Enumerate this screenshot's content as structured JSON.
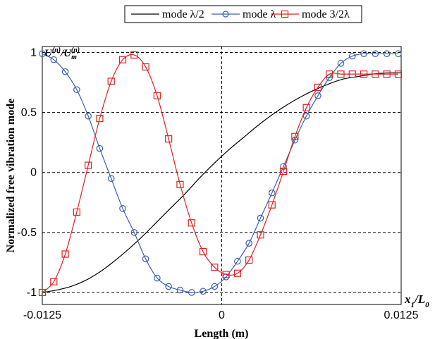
{
  "chart_data": {
    "type": "line",
    "xlabel": "Length (m)",
    "ylabel": "Normalized free vibration mode",
    "xlim": [
      -0.0125,
      0.0125
    ],
    "ylim": [
      -1.1,
      1.05
    ],
    "x_ticks": [
      -0.0125,
      0,
      0.0125
    ],
    "x_tick_labels": [
      "-0.0125",
      "0",
      "0.0125"
    ],
    "y_ticks": [
      1,
      0.5,
      0,
      -0.5,
      -1
    ],
    "y_tick_labels": [
      "1",
      "0.5",
      "0",
      "-0.5",
      "-1"
    ],
    "grid": "dashed",
    "legend_position": "top",
    "annotations": {
      "top_left": {
        "base": "U",
        "base_sup": "(n)",
        "sep": "/",
        "denom": "U",
        "denom_sub": "m",
        "denom_sup": "(n)"
      },
      "bottom_right": {
        "base": "x",
        "sub1": "1",
        "sep": "/",
        "denom": "L",
        "sub2": "0"
      }
    },
    "series": [
      {
        "name": "mode λ/2",
        "color": "#000000",
        "marker": "none",
        "x": [
          -0.0125,
          -0.0115,
          -0.0105,
          -0.0095,
          -0.0085,
          -0.0075,
          -0.0065,
          -0.0055,
          -0.0045,
          -0.0035,
          -0.0025,
          -0.0015,
          -0.0005,
          0.0005,
          0.0015,
          0.0025,
          0.0035,
          0.0045,
          0.0055,
          0.0065,
          0.0075,
          0.0085,
          0.0095,
          0.0105,
          0.0115,
          0.0125
        ],
        "y": [
          -1.0,
          -0.98,
          -0.95,
          -0.9,
          -0.83,
          -0.74,
          -0.64,
          -0.53,
          -0.41,
          -0.29,
          -0.17,
          -0.04,
          0.08,
          0.19,
          0.29,
          0.39,
          0.48,
          0.56,
          0.63,
          0.69,
          0.74,
          0.78,
          0.8,
          0.82,
          0.83,
          0.83
        ]
      },
      {
        "name": "mode λ",
        "color": "#3a5fb0",
        "marker": "circle",
        "x": [
          -0.0125,
          -0.0117,
          -0.0109,
          -0.0101,
          -0.0093,
          -0.0085,
          -0.0077,
          -0.0069,
          -0.0061,
          -0.0053,
          -0.0045,
          -0.0037,
          -0.0029,
          -0.0021,
          -0.0013,
          -0.0005,
          0.0003,
          0.0011,
          0.0019,
          0.0027,
          0.0035,
          0.0043,
          0.0051,
          0.0059,
          0.0067,
          0.0075,
          0.0083,
          0.0091,
          0.0099,
          0.0107,
          0.0115,
          0.0123
        ],
        "y": [
          0.99,
          0.94,
          0.84,
          0.69,
          0.47,
          0.2,
          -0.05,
          -0.3,
          -0.5,
          -0.72,
          -0.88,
          -0.95,
          -0.98,
          -1.0,
          -0.99,
          -0.95,
          -0.87,
          -0.74,
          -0.59,
          -0.38,
          -0.17,
          0.05,
          0.27,
          0.47,
          0.64,
          0.79,
          0.91,
          0.97,
          0.99,
          0.99,
          0.99,
          0.99
        ]
      },
      {
        "name": "mode 3/2λ",
        "color": "#e02020",
        "marker": "square",
        "x": [
          -0.0125,
          -0.0117,
          -0.0109,
          -0.0101,
          -0.0093,
          -0.0085,
          -0.0077,
          -0.0069,
          -0.0061,
          -0.0053,
          -0.0045,
          -0.0037,
          -0.0029,
          -0.0021,
          -0.0013,
          -0.0005,
          0.0003,
          0.0011,
          0.0019,
          0.0027,
          0.0035,
          0.0043,
          0.0051,
          0.0059,
          0.0067,
          0.0075,
          0.0083,
          0.0091,
          0.0099,
          0.0107,
          0.0115,
          0.0123
        ],
        "y": [
          -1.0,
          -0.91,
          -0.68,
          -0.33,
          0.06,
          0.45,
          0.76,
          0.94,
          0.98,
          0.88,
          0.64,
          0.28,
          -0.1,
          -0.42,
          -0.66,
          -0.79,
          -0.85,
          -0.84,
          -0.73,
          -0.52,
          -0.27,
          0.01,
          0.3,
          0.54,
          0.71,
          0.82,
          0.82,
          0.82,
          0.82,
          0.82,
          0.82,
          0.82
        ]
      }
    ]
  }
}
